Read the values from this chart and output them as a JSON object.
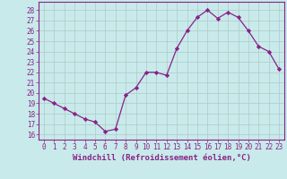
{
  "x": [
    0,
    1,
    2,
    3,
    4,
    5,
    6,
    7,
    8,
    9,
    10,
    11,
    12,
    13,
    14,
    15,
    16,
    17,
    18,
    19,
    20,
    21,
    22,
    23
  ],
  "y": [
    19.5,
    19.0,
    18.5,
    18.0,
    17.5,
    17.2,
    16.3,
    16.5,
    19.8,
    20.5,
    22.0,
    22.0,
    21.7,
    24.3,
    26.0,
    27.3,
    28.0,
    27.2,
    27.8,
    27.3,
    26.0,
    24.5,
    24.0,
    22.3
  ],
  "line_color": "#882288",
  "marker": "D",
  "marker_size": 2.2,
  "bg_color": "#c8eaea",
  "grid_color": "#b0c8c8",
  "xlabel": "Windchill (Refroidissement éolien,°C)",
  "ylim": [
    15.5,
    28.8
  ],
  "yticks": [
    16,
    17,
    18,
    19,
    20,
    21,
    22,
    23,
    24,
    25,
    26,
    27,
    28
  ],
  "xlim": [
    -0.5,
    23.5
  ],
  "xticks": [
    0,
    1,
    2,
    3,
    4,
    5,
    6,
    7,
    8,
    9,
    10,
    11,
    12,
    13,
    14,
    15,
    16,
    17,
    18,
    19,
    20,
    21,
    22,
    23
  ],
  "tick_fontsize": 5.5,
  "xlabel_fontsize": 6.5,
  "axis_label_color": "#882288",
  "spine_color": "#882288"
}
